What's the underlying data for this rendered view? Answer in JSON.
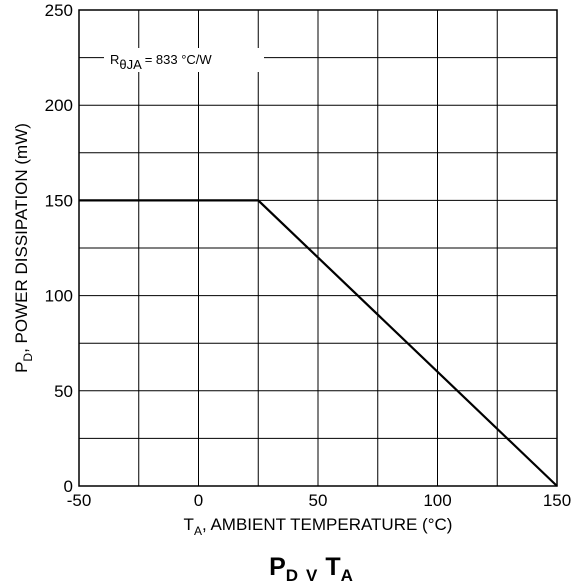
{
  "chart_data": {
    "type": "line",
    "title": "P",
    "title_sub1": "D",
    "title_mid": "V",
    "title_main2": "T",
    "title_sub2": "A",
    "xlabel": "T",
    "xlabel_sub": "A",
    "xlabel_rest": ", AMBIENT TEMPERATURE (°C)",
    "ylabel": "P",
    "ylabel_sub": "D",
    "ylabel_rest": ", POWER DISSIPATION (mW)",
    "xlim": [
      -50,
      150
    ],
    "ylim": [
      0,
      250
    ],
    "x_ticks": [
      -50,
      0,
      50,
      100,
      150
    ],
    "y_ticks": [
      0,
      50,
      100,
      150,
      200,
      250
    ],
    "x_ticks_labels": [
      "-50",
      "0",
      "50",
      "100",
      "150"
    ],
    "y_ticks_labels": [
      "0",
      "50",
      "100",
      "150",
      "200",
      "250"
    ],
    "grid": true,
    "x_grid_step": 25,
    "y_grid_step": 25,
    "series": [
      {
        "x": [
          -50,
          25,
          150
        ],
        "y": [
          150,
          150,
          0
        ]
      }
    ],
    "annotation": {
      "main": "R",
      "sub": "θJA",
      "rest": " = 833 °C/W",
      "x": -25,
      "y": 225
    },
    "line_color": "#000000",
    "grid_color": "#000000"
  }
}
